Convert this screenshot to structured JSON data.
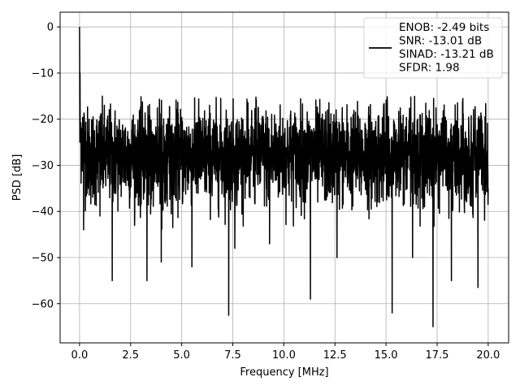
{
  "chart_data": {
    "type": "line",
    "title": "",
    "xlabel": "Frequency [MHz]",
    "ylabel": "PSD [dB]",
    "xlim": [
      -0.95,
      21.0
    ],
    "ylim": [
      -68.5,
      3.2
    ],
    "xticks": [
      0.0,
      2.5,
      5.0,
      7.5,
      10.0,
      12.5,
      15.0,
      17.5,
      20.0
    ],
    "xtick_labels": [
      "0.0",
      "2.5",
      "5.0",
      "7.5",
      "10.0",
      "12.5",
      "15.0",
      "17.5",
      "20.0"
    ],
    "yticks": [
      0,
      -10,
      -20,
      -30,
      -40,
      -50,
      -60
    ],
    "ytick_labels": [
      "0",
      "−10",
      "−20",
      "−30",
      "−40",
      "−50",
      "−60"
    ],
    "grid": true,
    "legend_position": "top-right",
    "series_color": "#000000",
    "series": [
      {
        "name": "ENOB: -2.49 bits",
        "legend_lines": [
          "ENOB: -2.49 bits",
          "SNR: -13.01 dB",
          "SINAD: -13.21 dB",
          "SFDR: 1.98"
        ],
        "x_range": [
          0.0,
          20.0
        ],
        "peak": {
          "x": 0.0,
          "y": 0.0
        },
        "noise_floor_mean_db": -28,
        "upper_envelope_db": -15,
        "lower_envelope_db": -40,
        "notable_minima": [
          {
            "x": 0.2,
            "y": -44
          },
          {
            "x": 1.0,
            "y": -41
          },
          {
            "x": 1.6,
            "y": -55
          },
          {
            "x": 3.3,
            "y": -55
          },
          {
            "x": 4.0,
            "y": -51
          },
          {
            "x": 5.5,
            "y": -52
          },
          {
            "x": 7.3,
            "y": -62.5
          },
          {
            "x": 7.6,
            "y": -48
          },
          {
            "x": 9.3,
            "y": -47
          },
          {
            "x": 11.3,
            "y": -59
          },
          {
            "x": 12.6,
            "y": -50
          },
          {
            "x": 15.3,
            "y": -62
          },
          {
            "x": 16.3,
            "y": -50
          },
          {
            "x": 17.3,
            "y": -65
          },
          {
            "x": 18.2,
            "y": -55
          },
          {
            "x": 19.5,
            "y": -56.5
          }
        ]
      }
    ]
  }
}
